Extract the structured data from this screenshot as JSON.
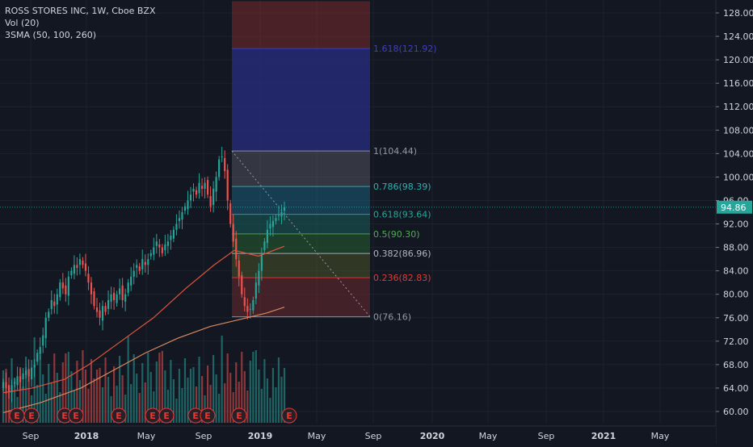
{
  "legend": {
    "title": "ROSS STORES INC, 1W, Cboe BZX",
    "vol": "Vol (20)",
    "sma": "3SMA (50, 100, 260)"
  },
  "price_axis": {
    "ticks": [
      "128.00",
      "124.00",
      "120.00",
      "116.00",
      "112.00",
      "108.00",
      "104.00",
      "100.00",
      "96.00",
      "92.00",
      "88.00",
      "84.00",
      "80.00",
      "76.00",
      "72.00",
      "68.00",
      "64.00",
      "60.00"
    ],
    "current_price": "94.86",
    "current_color": "#26a69a"
  },
  "time_axis": {
    "labels": [
      "Sep",
      "2018",
      "May",
      "Sep",
      "2019",
      "May",
      "Sep",
      "2020",
      "May",
      "Sep",
      "2021",
      "May"
    ]
  },
  "fibonacci": {
    "levels": [
      {
        "label": "1.618(121.92)",
        "value": 121.92,
        "color": "#3f3fc8"
      },
      {
        "label": "1(104.44)",
        "value": 104.44,
        "color": "#9598a1"
      },
      {
        "label": "0.786(98.39)",
        "value": 98.39,
        "color": "#2ab3b3"
      },
      {
        "label": "0.618(93.64)",
        "value": 93.64,
        "color": "#26a69a"
      },
      {
        "label": "0.5(90.30)",
        "value": 90.3,
        "color": "#4caf50"
      },
      {
        "label": "0.382(86.96)",
        "value": 86.96,
        "color": "#b2b5be"
      },
      {
        "label": "0.236(82.83)",
        "value": 82.83,
        "color": "#e53935"
      },
      {
        "label": "0(76.16)",
        "value": 76.16,
        "color": "#9598a1"
      }
    ]
  },
  "earnings": {
    "label": "E",
    "color": "#e53935"
  },
  "colors": {
    "background": "#131722",
    "grid": "#1e222d",
    "up": "#26a69a",
    "down": "#ef5350",
    "sma50": "#e0533c",
    "sma100": "#d98a5e",
    "axis_text": "#d1d4dc"
  }
}
